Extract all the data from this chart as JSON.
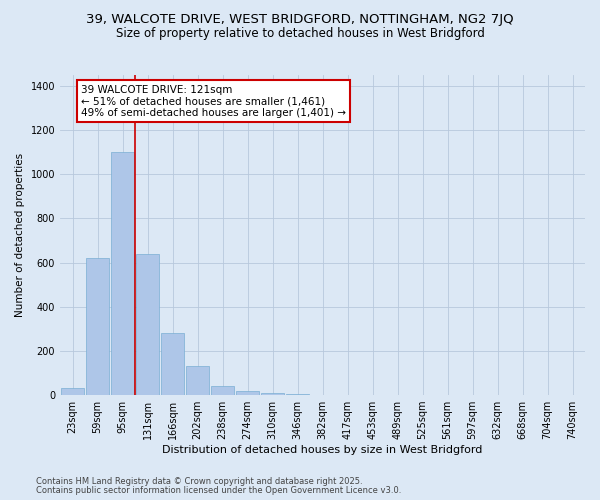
{
  "title1": "39, WALCOTE DRIVE, WEST BRIDGFORD, NOTTINGHAM, NG2 7JQ",
  "title2": "Size of property relative to detached houses in West Bridgford",
  "xlabel": "Distribution of detached houses by size in West Bridgford",
  "ylabel": "Number of detached properties",
  "footer1": "Contains HM Land Registry data © Crown copyright and database right 2025.",
  "footer2": "Contains public sector information licensed under the Open Government Licence v3.0.",
  "annotation_title": "39 WALCOTE DRIVE: 121sqm",
  "annotation_line1": "← 51% of detached houses are smaller (1,461)",
  "annotation_line2": "49% of semi-detached houses are larger (1,401) →",
  "categories": [
    "23sqm",
    "59sqm",
    "95sqm",
    "131sqm",
    "166sqm",
    "202sqm",
    "238sqm",
    "274sqm",
    "310sqm",
    "346sqm",
    "382sqm",
    "417sqm",
    "453sqm",
    "489sqm",
    "525sqm",
    "561sqm",
    "597sqm",
    "632sqm",
    "668sqm",
    "704sqm",
    "740sqm"
  ],
  "bar_values": [
    30,
    620,
    1100,
    640,
    280,
    130,
    40,
    20,
    10,
    5,
    2,
    0,
    0,
    0,
    0,
    0,
    0,
    0,
    0,
    0,
    0
  ],
  "bar_color": "#aec6e8",
  "bar_edge_color": "#7aaed4",
  "vline_x_index": 2,
  "vline_color": "#cc0000",
  "ylim": [
    0,
    1450
  ],
  "bg_color": "#dce8f5",
  "annotation_box_color": "#ffffff",
  "annotation_box_edge": "#cc0000",
  "grid_color": "#b8c8dc",
  "title1_fontsize": 9.5,
  "title2_fontsize": 8.5,
  "tick_fontsize": 7,
  "ylabel_fontsize": 7.5,
  "xlabel_fontsize": 8,
  "footer_fontsize": 6,
  "ann_fontsize": 7.5
}
